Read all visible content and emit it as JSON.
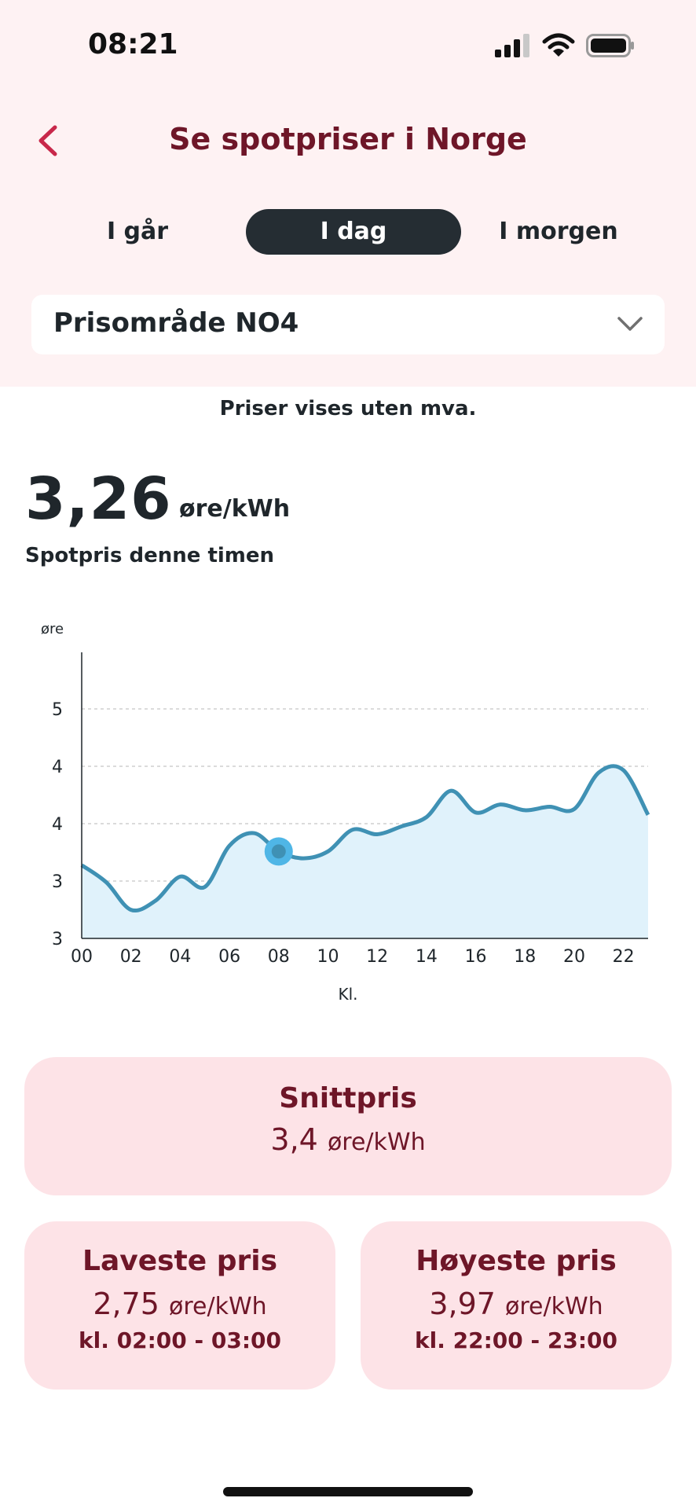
{
  "status_bar": {
    "time": "08:21"
  },
  "header": {
    "title": "Se spotpriser i Norge"
  },
  "tabs": [
    {
      "label": "I går",
      "active": false
    },
    {
      "label": "I dag",
      "active": true
    },
    {
      "label": "I morgen",
      "active": false
    }
  ],
  "price_area": {
    "selected": "Prisområde NO4"
  },
  "vat_note": "Priser vises uten mva.",
  "current": {
    "price": "3,26",
    "unit": "øre/kWh",
    "caption": "Spotpris denne timen"
  },
  "chart_data": {
    "type": "area",
    "ylabel": "øre",
    "xlabel": "Kl.",
    "x_ticks": [
      "00",
      "02",
      "04",
      "06",
      "08",
      "10",
      "12",
      "14",
      "16",
      "18",
      "20",
      "22"
    ],
    "y_tick_labels": [
      "3",
      "3",
      "4",
      "4",
      "5"
    ],
    "hours": [
      0,
      1,
      2,
      3,
      4,
      5,
      6,
      7,
      8,
      9,
      10,
      11,
      12,
      13,
      14,
      15,
      16,
      17,
      18,
      19,
      20,
      21,
      22,
      23
    ],
    "values": [
      3.14,
      2.99,
      2.75,
      2.83,
      3.04,
      2.95,
      3.31,
      3.42,
      3.26,
      3.2,
      3.26,
      3.45,
      3.41,
      3.48,
      3.56,
      3.79,
      3.6,
      3.67,
      3.62,
      3.65,
      3.63,
      3.95,
      3.97,
      3.58
    ],
    "ylim": [
      2.5,
      5.0
    ],
    "highlight_hour": 8,
    "grid": true,
    "colors": {
      "line": "#3f91b4",
      "fill": "#e0f2fb",
      "marker": "#4fb6e6"
    }
  },
  "stats": {
    "average": {
      "title": "Snittpris",
      "value": "3,4",
      "unit": "øre/kWh"
    },
    "lowest": {
      "title": "Laveste pris",
      "value": "2,75",
      "unit": "øre/kWh",
      "time": "kl. 02:00 - 03:00"
    },
    "highest": {
      "title": "Høyeste pris",
      "value": "3,97",
      "unit": "øre/kWh",
      "time": "kl. 22:00 - 23:00"
    }
  }
}
